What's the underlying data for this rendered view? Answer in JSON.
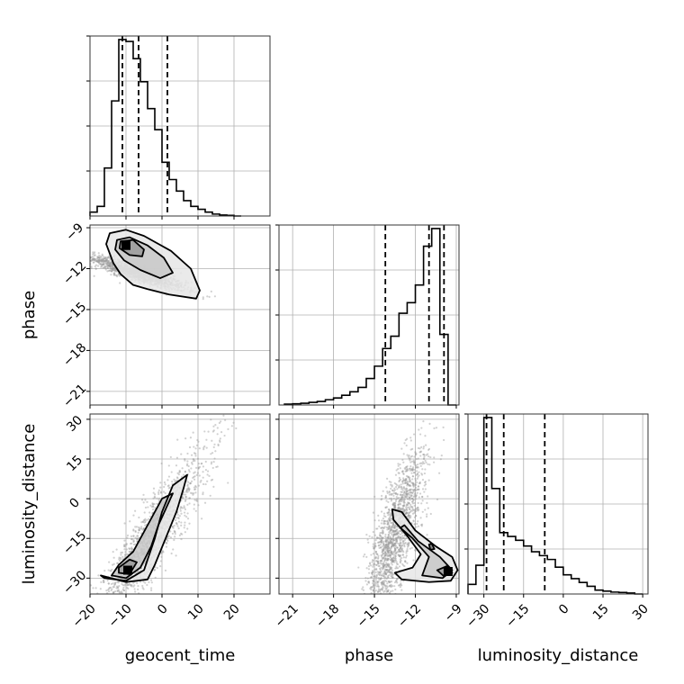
{
  "chart_data": {
    "type": "corner",
    "parameters": [
      "geocent_time",
      "phase",
      "luminosity_distance"
    ],
    "axis_labels": {
      "x": [
        "geocent_time",
        "phase",
        "luminosity_distance"
      ],
      "y": [
        "phase",
        "luminosity_distance"
      ]
    },
    "axes": {
      "geocent_time": {
        "range": [
          -20,
          30
        ],
        "ticks": [
          -20,
          -10,
          0,
          10,
          20
        ],
        "tick_labels": [
          "−20",
          "−10",
          "0",
          "10",
          "20"
        ]
      },
      "phase": {
        "range": [
          -22,
          -8.8
        ],
        "ticks": [
          -21,
          -18,
          -15,
          -12,
          -9
        ],
        "tick_labels": [
          "−21",
          "−18",
          "−15",
          "−12",
          "−9"
        ]
      },
      "luminosity_distance": {
        "range": [
          -36,
          32
        ],
        "ticks": [
          -30,
          -15,
          0,
          15,
          30
        ],
        "tick_labels": [
          "−30",
          "−15",
          "0",
          "15",
          "30"
        ]
      }
    },
    "grid": true,
    "histograms": [
      {
        "parameter": "geocent_time",
        "bin_edges": [
          -20,
          -18,
          -16,
          -14,
          -12,
          -10,
          -8,
          -6,
          -4,
          -2,
          0,
          2,
          4,
          6,
          8,
          10,
          12,
          14,
          16,
          18,
          20,
          22
        ],
        "counts": [
          0.02,
          0.05,
          0.25,
          0.6,
          0.92,
          0.91,
          0.82,
          0.7,
          0.56,
          0.45,
          0.28,
          0.19,
          0.13,
          0.08,
          0.05,
          0.035,
          0.02,
          0.01,
          0.005,
          0.003,
          0
        ],
        "quantiles": [
          -11,
          -6.5,
          1.5
        ]
      },
      {
        "parameter": "phase",
        "bin_edges": [
          -21.6,
          -21,
          -20.4,
          -19.8,
          -19.2,
          -18.6,
          -18,
          -17.4,
          -16.8,
          -16.2,
          -15.6,
          -15,
          -14.4,
          -13.8,
          -13.2,
          -12.6,
          -12,
          -11.4,
          -10.8,
          -10.2,
          -9.6,
          -9
        ],
        "counts": [
          0.005,
          0.007,
          0.01,
          0.015,
          0.02,
          0.03,
          0.04,
          0.055,
          0.075,
          0.1,
          0.15,
          0.22,
          0.32,
          0.39,
          0.52,
          0.58,
          0.68,
          0.9,
          1.0,
          0.4,
          0
        ],
        "quantiles": [
          -14.2,
          -11.0,
          -9.9
        ]
      },
      {
        "parameter": "luminosity_distance",
        "bin_edges": [
          -36,
          -33,
          -30,
          -27,
          -24,
          -21,
          -18,
          -15,
          -12,
          -9,
          -6,
          -3,
          0,
          3,
          6,
          9,
          12,
          15,
          18,
          21,
          24,
          27,
          30
        ],
        "counts": [
          0.05,
          0.15,
          0.92,
          0.55,
          0.32,
          0.3,
          0.28,
          0.25,
          0.22,
          0.2,
          0.18,
          0.14,
          0.1,
          0.08,
          0.06,
          0.04,
          0.02,
          0.015,
          0.01,
          0.008,
          0.005,
          0
        ],
        "quantiles": [
          -29,
          -22.5,
          -7
        ]
      }
    ],
    "contour_panels": [
      {
        "x": "geocent_time",
        "y": "phase",
        "density_peak": [
          -10,
          -10.3
        ],
        "contours": [
          [
            [
              -14.5,
              -9.4
            ],
            [
              -10,
              -9.15
            ],
            [
              -5,
              -9.6
            ],
            [
              2.5,
              -10.7
            ],
            [
              8,
              -12
            ],
            [
              10.5,
              -13.6
            ],
            [
              9.5,
              -14.2
            ],
            [
              2,
              -13.9
            ],
            [
              -4,
              -13.5
            ],
            [
              -8,
              -13.2
            ],
            [
              -11.5,
              -12.4
            ],
            [
              -13.5,
              -11.6
            ],
            [
              -15.5,
              -10.2
            ]
          ],
          [
            [
              -12.5,
              -9.9
            ],
            [
              -9,
              -9.7
            ],
            [
              -4,
              -10.3
            ],
            [
              0.5,
              -11.2
            ],
            [
              3,
              -12.3
            ],
            [
              -0.5,
              -12.7
            ],
            [
              -6,
              -12.1
            ],
            [
              -10.5,
              -11.4
            ],
            [
              -13,
              -10.6
            ]
          ],
          [
            [
              -11.5,
              -10
            ],
            [
              -8,
              -9.9
            ],
            [
              -5,
              -10.6
            ],
            [
              -5.5,
              -11.1
            ],
            [
              -9,
              -11
            ],
            [
              -11.8,
              -10.5
            ]
          ]
        ],
        "scatter": {
          "count": 1400,
          "center": [
            -7,
            -12.3
          ],
          "sigma_major": 8.5,
          "sigma_minor": 1.3,
          "angle_deg": -18,
          "x_range": [
            -20,
            28
          ],
          "y_range": [
            -22,
            -9.2
          ]
        }
      },
      {
        "x": "geocent_time",
        "y": "luminosity_distance",
        "density_peak": [
          -9.5,
          -27
        ],
        "contours": [
          [
            [
              -16,
              -30
            ],
            [
              -10,
              -31
            ],
            [
              -5,
              -27
            ],
            [
              -2,
              -15
            ],
            [
              0,
              -5
            ],
            [
              3,
              5
            ],
            [
              7,
              9
            ],
            [
              6,
              4
            ],
            [
              4,
              -5
            ],
            [
              1,
              -15
            ],
            [
              -2,
              -25
            ],
            [
              -4,
              -30.5
            ],
            [
              -10,
              -31.5
            ],
            [
              -17,
              -29
            ]
          ],
          [
            [
              -14,
              -29
            ],
            [
              -10,
              -30
            ],
            [
              -6,
              -26
            ],
            [
              -3,
              -18
            ],
            [
              -1,
              -10
            ],
            [
              1,
              -4
            ],
            [
              3,
              2
            ],
            [
              0,
              0
            ],
            [
              -4,
              -10
            ],
            [
              -8,
              -20
            ],
            [
              -12,
              -25
            ]
          ],
          [
            [
              -12,
              -28
            ],
            [
              -9,
              -28.5
            ],
            [
              -7,
              -24
            ],
            [
              -9,
              -23
            ],
            [
              -12,
              -26
            ]
          ]
        ],
        "scatter": {
          "count": 1500,
          "center": [
            -4,
            -17
          ],
          "sigma_major": 19,
          "sigma_minor": 3.5,
          "angle_deg": 58,
          "x_range": [
            -20,
            28
          ],
          "y_range": [
            -36,
            32
          ]
        }
      },
      {
        "x": "phase",
        "y": "luminosity_distance",
        "density_peak": [
          -9.6,
          -27.5
        ],
        "contours": [
          [
            [
              -13.7,
              -4
            ],
            [
              -13,
              -5
            ],
            [
              -12,
              -12
            ],
            [
              -10.5,
              -18
            ],
            [
              -9.3,
              -22
            ],
            [
              -8.9,
              -27
            ],
            [
              -9.4,
              -31
            ],
            [
              -11,
              -31.5
            ],
            [
              -13,
              -30.5
            ],
            [
              -13.5,
              -28
            ],
            [
              -12.2,
              -26
            ],
            [
              -11.6,
              -21
            ],
            [
              -12.6,
              -14
            ],
            [
              -13.6,
              -8
            ]
          ],
          [
            [
              -12.8,
              -10
            ],
            [
              -11.8,
              -16
            ],
            [
              -10.2,
              -22
            ],
            [
              -9.3,
              -27
            ],
            [
              -10,
              -30
            ],
            [
              -11.5,
              -29
            ],
            [
              -11,
              -22
            ],
            [
              -12.2,
              -15
            ],
            [
              -13.1,
              -11
            ]
          ],
          [
            [
              -10.4,
              -27
            ],
            [
              -9.7,
              -25.5
            ],
            [
              -9.3,
              -28
            ],
            [
              -9.9,
              -29.3
            ]
          ],
          [
            [
              -10.8,
              -17
            ],
            [
              -10.6,
              -19
            ],
            [
              -10.9,
              -19.3
            ],
            [
              -11,
              -17.3
            ]
          ]
        ],
        "scatter": {
          "count": 1700,
          "center": [
            -13.5,
            -14
          ],
          "sigma_major": 15,
          "sigma_minor": 3,
          "angle_deg": 75,
          "x_range": [
            -22,
            -8.8
          ],
          "y_range": [
            -36,
            32
          ]
        }
      }
    ]
  }
}
